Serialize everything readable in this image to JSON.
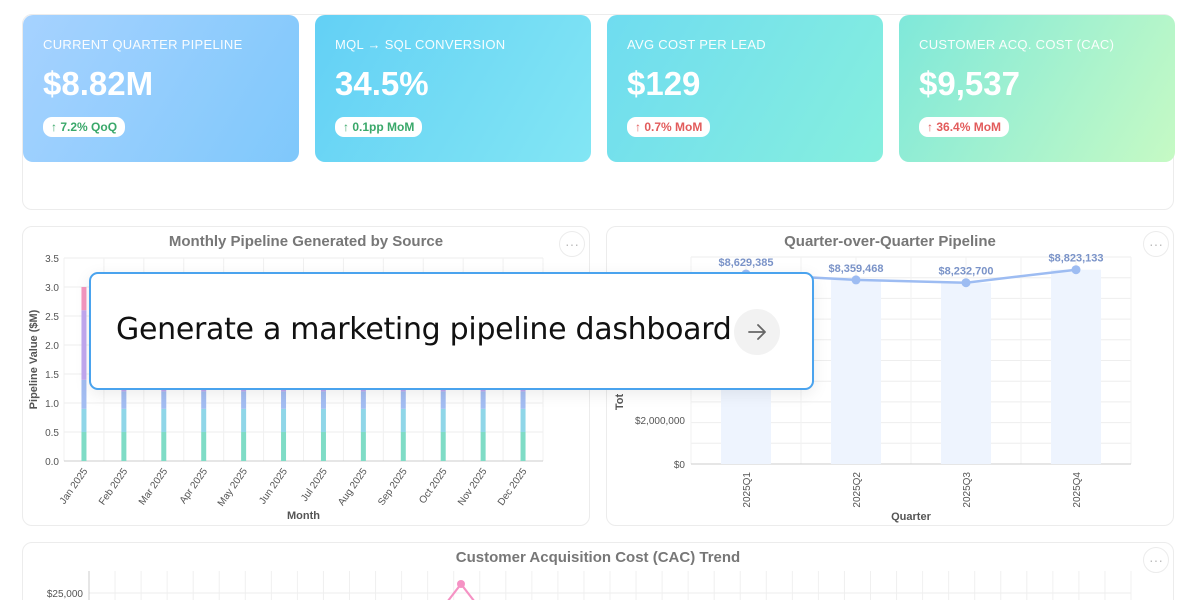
{
  "kpis": [
    {
      "label": "CURRENT QUARTER PIPELINE",
      "value": "$8.82M",
      "change": "7.2% QoQ",
      "trend": "good",
      "gradient": [
        "#a6d2ff",
        "#7fc8fb"
      ]
    },
    {
      "label": "MQL → SQL CONVERSION",
      "value": "34.5%",
      "change": "0.1pp MoM",
      "trend": "good",
      "gradient": [
        "#63d0f5",
        "#82e6f4"
      ]
    },
    {
      "label": "AVG COST PER LEAD",
      "value": "$129",
      "change": "0.7% MoM",
      "trend": "bad",
      "gradient": [
        "#6fdcf0",
        "#86efde"
      ]
    },
    {
      "label": "CUSTOMER ACQ. COST (CAC)",
      "value": "$9,537",
      "change": "36.4% MoM",
      "trend": "bad",
      "gradient": [
        "#7fe8da",
        "#c6fac4"
      ]
    }
  ],
  "kpi_arrow": "↑",
  "more_glyph": "···",
  "prompt": {
    "text": "Generate a marketing pipeline dashboard",
    "submit_icon": "arrow-right-icon"
  },
  "chart_data": [
    {
      "type": "bar",
      "stacked": true,
      "title": "Monthly Pipeline Generated by Source",
      "xlabel": "Month",
      "ylabel": "Pipeline Value ($M)",
      "ylim": [
        0,
        3.5
      ],
      "yticks": [
        "0.0",
        "0.5",
        "1.0",
        "1.5",
        "2.0",
        "2.5",
        "3.0",
        "3.5"
      ],
      "categories": [
        "Jan 2025",
        "Feb 2025",
        "Mar 2025",
        "Apr 2025",
        "May 2025",
        "Jun 2025",
        "Jul 2025",
        "Aug 2025",
        "Sep 2025",
        "Oct 2025",
        "Nov 2025",
        "Dec 2025"
      ],
      "series": [
        {
          "color": "#7fdcc6",
          "values": [
            0.5,
            0.5,
            0.5,
            0.5,
            0.5,
            0.5,
            0.5,
            0.5,
            0.5,
            0.5,
            0.5,
            0.5
          ]
        },
        {
          "color": "#8fd6e8",
          "values": [
            0.4,
            0.4,
            0.4,
            0.4,
            0.4,
            0.4,
            0.4,
            0.4,
            0.4,
            0.4,
            0.4,
            0.4
          ]
        },
        {
          "color": "#a3bdf2",
          "values": [
            0.5,
            0.3,
            0.3,
            0.3,
            0.3,
            0.3,
            0.3,
            0.3,
            0.3,
            0.3,
            0.3,
            0.3
          ]
        },
        {
          "color": "#c2a8f0",
          "values": [
            1.2,
            1.7,
            1.7,
            1.7,
            1.7,
            1.7,
            1.7,
            1.7,
            1.7,
            1.7,
            1.7,
            1.7
          ]
        },
        {
          "color": "#f597c0",
          "values": [
            0.4,
            0,
            0,
            0,
            0,
            0,
            0,
            0,
            0,
            0,
            0,
            0
          ]
        }
      ],
      "grid": true
    },
    {
      "type": "bar",
      "title": "Quarter-over-Quarter Pipeline",
      "xlabel": "Quarter",
      "ylabel": "Tot",
      "ylim": [
        0,
        9400000
      ],
      "yticks": [
        {
          "v": 0,
          "label": "$0"
        },
        {
          "v": 2000000,
          "label": "$2,000,000"
        }
      ],
      "categories": [
        "2025Q1",
        "2025Q2",
        "2025Q3",
        "2025Q4"
      ],
      "values": [
        8629385,
        8359468,
        8232700,
        8823133
      ],
      "data_labels": [
        "$8,629,385",
        "$8,359,468",
        "$8,232,700",
        "$8,823,133"
      ],
      "bar_color": "#eef4fe",
      "line_color": "#9dbcf2",
      "grid": true
    },
    {
      "type": "line",
      "title": "Customer Acquisition Cost (CAC) Trend",
      "ylim": [
        0,
        30000
      ],
      "yticks": [
        {
          "v": 25000,
          "label": "$25,000"
        }
      ],
      "line_color": "#f592c4",
      "grid": true
    }
  ]
}
